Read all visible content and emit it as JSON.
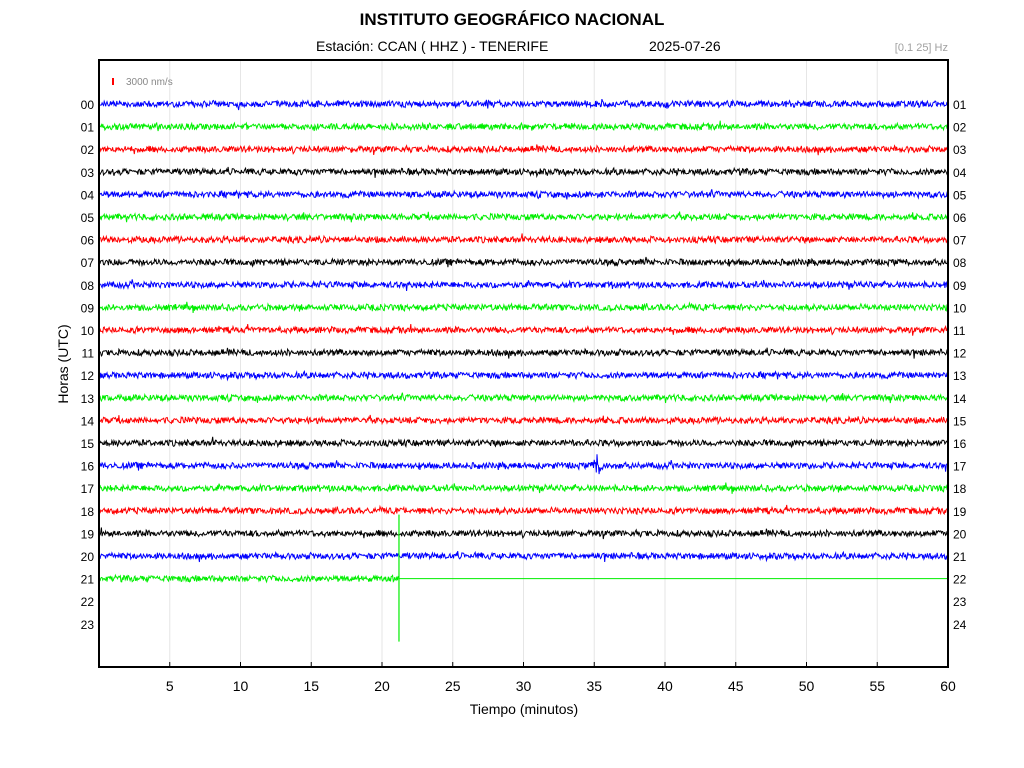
{
  "header": {
    "title": "INSTITUTO GEOGRÁFICO NACIONAL",
    "station": "Estación:  CCAN ( HHZ ) - TENERIFE",
    "date": "2025-07-26",
    "filter": "[0.1 25] Hz"
  },
  "chart_data": {
    "type": "line",
    "title": "INSTITUTO GEOGRÁFICO NACIONAL",
    "xlabel": "Tiempo (minutos)",
    "ylabel": "Horas (UTC)",
    "xlim": [
      0,
      60
    ],
    "x_ticks": [
      "5",
      "10",
      "15",
      "20",
      "25",
      "30",
      "35",
      "40",
      "45",
      "50",
      "55",
      "60"
    ],
    "left_hour_labels": [
      "00",
      "01",
      "02",
      "03",
      "04",
      "05",
      "06",
      "07",
      "08",
      "09",
      "10",
      "11",
      "12",
      "13",
      "14",
      "15",
      "16",
      "17",
      "18",
      "19",
      "20",
      "21",
      "22",
      "23"
    ],
    "right_hour_labels": [
      "01",
      "02",
      "03",
      "04",
      "05",
      "06",
      "07",
      "08",
      "09",
      "10",
      "11",
      "12",
      "13",
      "14",
      "15",
      "16",
      "17",
      "18",
      "19",
      "20",
      "21",
      "22",
      "23",
      "24"
    ],
    "scale_label": "3000 nm/s",
    "trace_colors": [
      "#0000ff",
      "#00ee00",
      "#ff0000",
      "#000000"
    ],
    "grid": true,
    "last_trace": {
      "hour": "21",
      "recorded_until_minute": 21.2,
      "spike_at_minute": 21.2
    },
    "events": [
      {
        "hour": "16",
        "minute": 35.2,
        "note": "small local event"
      },
      {
        "hour": "21",
        "minute": 21.2,
        "note": "transient spike at end of recording"
      }
    ]
  }
}
